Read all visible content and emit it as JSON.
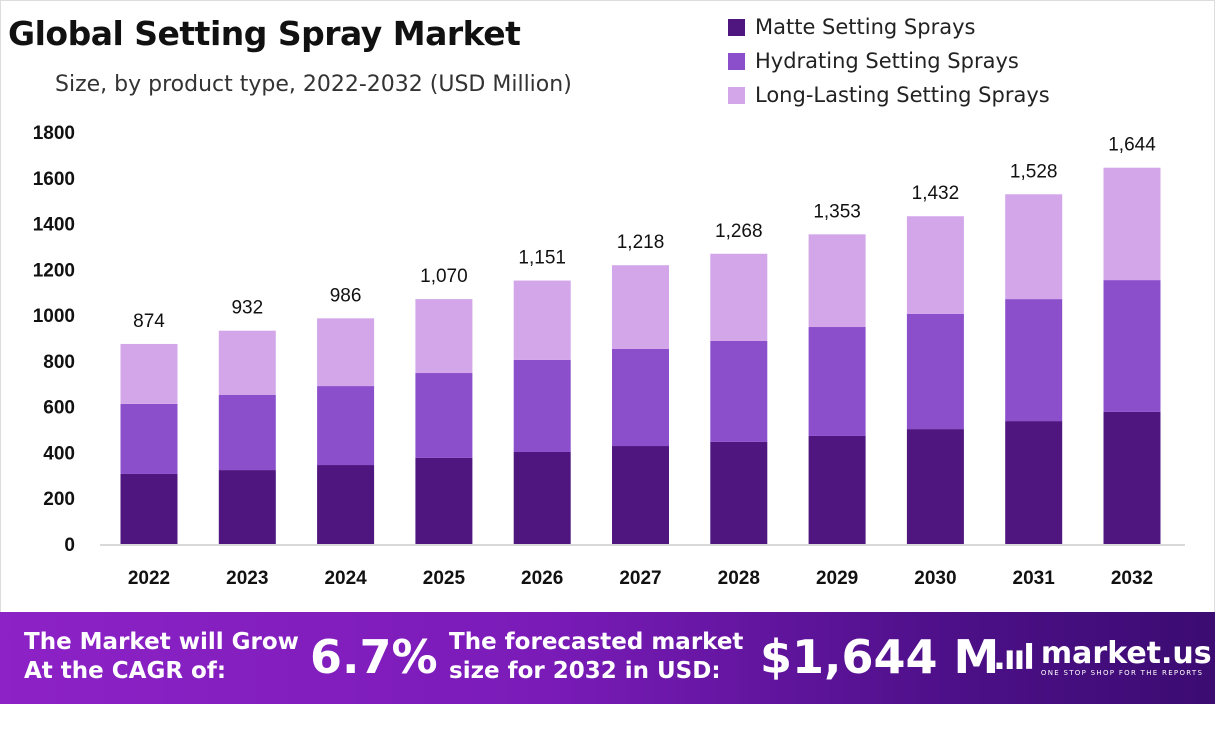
{
  "chart_data": {
    "type": "bar",
    "stacked": true,
    "title": "Global Setting Spray Market",
    "subtitle": "Size, by product type, 2022-2032 (USD Million)",
    "categories": [
      "2022",
      "2023",
      "2024",
      "2025",
      "2026",
      "2027",
      "2028",
      "2029",
      "2030",
      "2031",
      "2032"
    ],
    "series": [
      {
        "name": "Matte Setting Sprays",
        "color": "#4f1680",
        "values": [
          306,
          323,
          345,
          376,
          402,
          428,
          446,
          472,
          502,
          537,
          577
        ]
      },
      {
        "name": "Hydrating Setting Sprays",
        "color": "#8c4fcc",
        "values": [
          306,
          328,
          345,
          371,
          402,
          424,
          441,
          476,
          503,
          533,
          576
        ]
      },
      {
        "name": "Long-Lasting Setting Sprays",
        "color": "#d3a6ea",
        "values": [
          262,
          281,
          296,
          323,
          347,
          366,
          381,
          405,
          427,
          458,
          491
        ]
      }
    ],
    "totals": [
      "874",
      "932",
      "986",
      "1,070",
      "1,151",
      "1,218",
      "1,268",
      "1,353",
      "1,432",
      "1,528",
      "1,644"
    ],
    "ylim": [
      0,
      1800
    ],
    "yticks": [
      "0",
      "200",
      "400",
      "600",
      "800",
      "1000",
      "1200",
      "1400",
      "1600",
      "1800"
    ],
    "grid": false,
    "legend": "top-right"
  },
  "footer": {
    "cagr_label_1": "The Market will Grow",
    "cagr_label_2": "At the CAGR of:",
    "cagr_value": "6.7%",
    "forecast_label_1": "The forecasted market",
    "forecast_label_2": "size for 2032 in USD:",
    "forecast_value": "$1,644 M",
    "logo_name": "market.us",
    "logo_tagline": "ONE STOP SHOP FOR THE REPORTS"
  }
}
